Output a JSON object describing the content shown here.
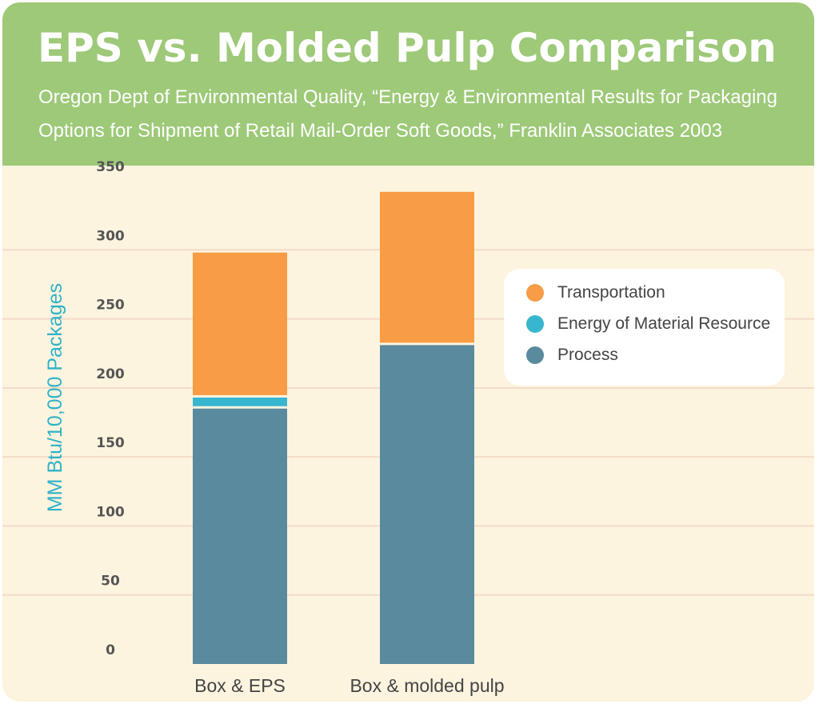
{
  "header": {
    "title": "EPS vs. Molded Pulp Comparison",
    "subtitle_line1": "Oregon Dept of Environmental Quality, “Energy & Environmental Results for Packaging",
    "subtitle_line2": "Options for Shipment of Retail Mail-Order Soft Goods,” Franklin Associates 2003"
  },
  "colors": {
    "header": "#9dc978",
    "background": "#fdf4df",
    "gridline": "#f2dcc8",
    "process": "#598a9e",
    "energy_of_material": "#38b6cf",
    "transportation": "#f89c45",
    "axis_label": "#2fb2c8"
  },
  "legend": {
    "items": [
      {
        "label": "Transportation",
        "color": "#f89c45"
      },
      {
        "label": "Energy of Material Resource",
        "color": "#38b6cf"
      },
      {
        "label": "Process",
        "color": "#598a9e"
      }
    ],
    "placement": "right"
  },
  "chart_data": {
    "type": "bar",
    "stacked": true,
    "title": "EPS vs. Molded Pulp Comparison",
    "ylabel": "MM Btu/10,000 Packages",
    "xlabel": "",
    "ylim": [
      0,
      350
    ],
    "yticks": [
      0,
      50,
      100,
      150,
      200,
      250,
      300,
      350
    ],
    "grid": true,
    "categories": [
      "Box & EPS",
      "Box & molded pulp"
    ],
    "series": [
      {
        "name": "Process",
        "color": "#598a9e",
        "values": [
          185,
          231
        ]
      },
      {
        "name": "Energy of Material Resource",
        "color": "#38b6cf",
        "values": [
          8,
          0
        ]
      },
      {
        "name": "Transportation",
        "color": "#f89c45",
        "values": [
          105,
          111
        ]
      }
    ]
  }
}
